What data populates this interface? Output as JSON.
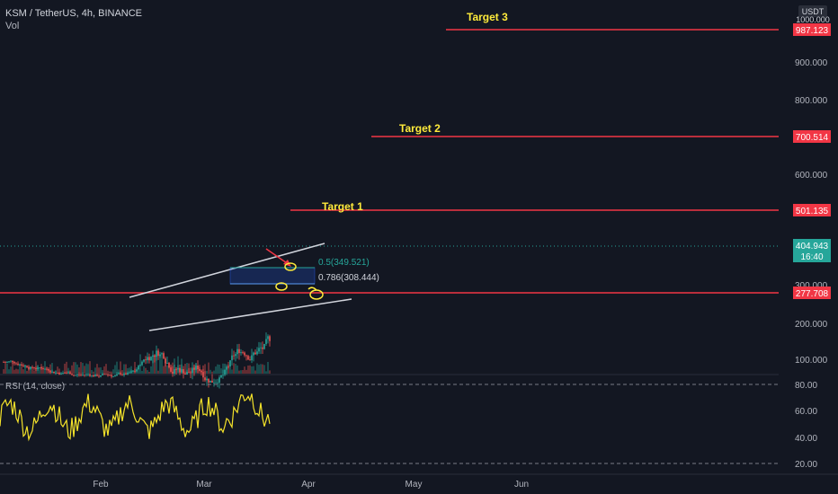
{
  "header": {
    "symbol_line": "KSM / TetherUS, 4h, BINANCE",
    "vol_label": "Vol"
  },
  "price_axis": {
    "currency": "USDT",
    "ticks": [
      "100.000",
      "200.000",
      "300.000",
      "600.000",
      "800.000",
      "900.000"
    ],
    "ticks_values": [
      100,
      200,
      300,
      600,
      800,
      900
    ],
    "top_tick": "1000.000"
  },
  "time_axis": {
    "labels": [
      "Feb",
      "Mar",
      "Apr",
      "May",
      "Jun"
    ]
  },
  "targets": [
    {
      "label": "Target 3",
      "price": "987.123"
    },
    {
      "label": "Target 2",
      "price": "700.514"
    },
    {
      "label": "Target 1",
      "price": "501.135"
    }
  ],
  "support": {
    "price": "277.708"
  },
  "current_price": {
    "price": "404.943",
    "countdown": "16:40"
  },
  "fib": {
    "level_05": "0.5(349.521)",
    "level_0786": "0.786(308.444)"
  },
  "rsi": {
    "label": "RSI (14, close)",
    "ticks": [
      "80.00",
      "60.00",
      "40.00",
      "20.00"
    ]
  },
  "colors": {
    "background": "#131722",
    "target_line": "#f23645",
    "target_text": "#ffeb3b",
    "rsi_line": "#f5e32a",
    "channel": "#d1d4dc",
    "fib_box": "#2962ff",
    "fib_text_05": "#26a69a",
    "up": "#26a69a",
    "down": "#ef5350"
  }
}
